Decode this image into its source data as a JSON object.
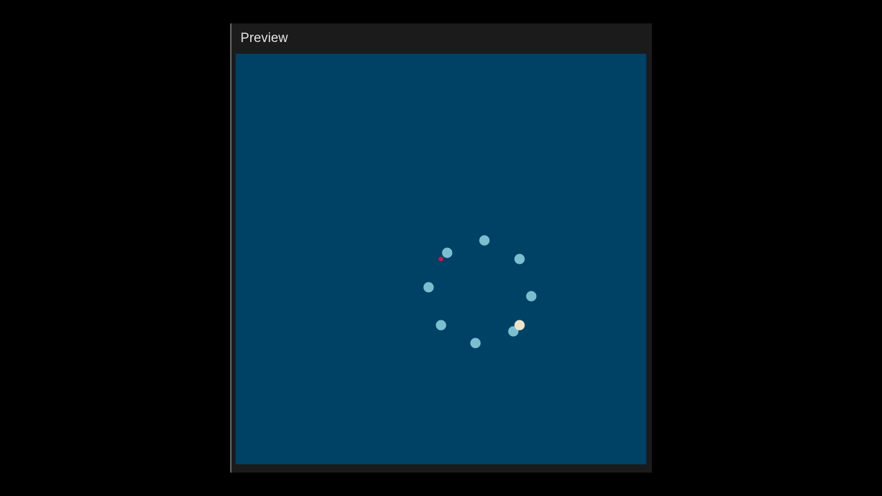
{
  "window": {
    "title": "Preview"
  },
  "colors": {
    "page_background": "#000000",
    "window_background": "#1b1b1b",
    "stage_background": "#004166",
    "dot": "#7bbfcf",
    "highlight_dot": "#efe3cc",
    "marker": "#c8154a"
  },
  "icons": {
    "dot": "circle",
    "highlight_dot": "circle",
    "marker": "small-circle"
  }
}
